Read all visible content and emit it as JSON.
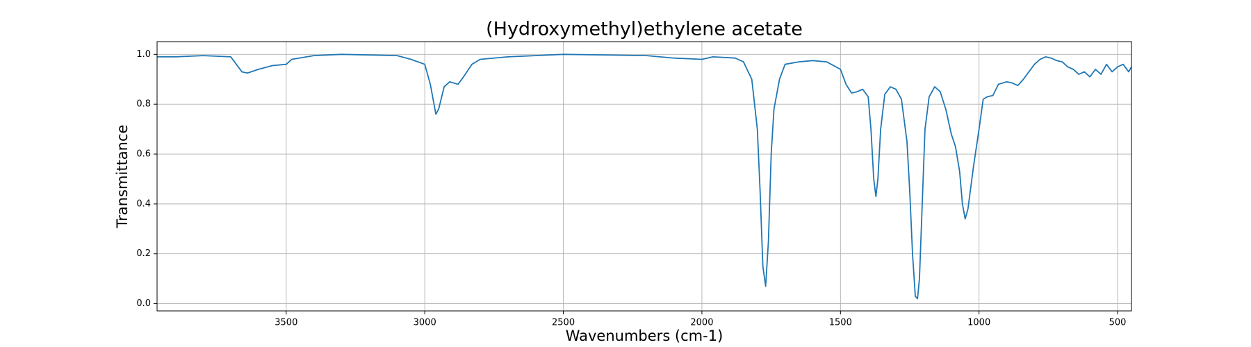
{
  "chart_data": {
    "type": "line",
    "title": "(Hydroxymethyl)ethylene acetate",
    "xlabel": "Wavenumbers (cm-1)",
    "ylabel": "Transmittance",
    "color": "#1f77b4",
    "grid": true,
    "xlim": [
      3966,
      450
    ],
    "ylim": [
      -0.029,
      1.051
    ],
    "xticks": [
      3500,
      3000,
      2500,
      2000,
      1500,
      1000,
      500
    ],
    "yticks": [
      {
        "value": 0,
        "label": "0.0"
      },
      0.2,
      0.4,
      0.6,
      0.8,
      {
        "value": 1,
        "label": "1.0"
      }
    ],
    "x": [
      3966,
      3900,
      3800,
      3700,
      3660,
      3640,
      3600,
      3550,
      3500,
      3480,
      3400,
      3300,
      3100,
      3050,
      3000,
      2980,
      2960,
      2950,
      2930,
      2910,
      2880,
      2860,
      2830,
      2800,
      2700,
      2500,
      2200,
      2100,
      2000,
      1960,
      1880,
      1850,
      1820,
      1800,
      1790,
      1780,
      1770,
      1760,
      1750,
      1740,
      1720,
      1700,
      1650,
      1600,
      1550,
      1500,
      1480,
      1460,
      1440,
      1420,
      1400,
      1390,
      1380,
      1372,
      1365,
      1355,
      1340,
      1320,
      1300,
      1280,
      1260,
      1250,
      1240,
      1230,
      1222,
      1215,
      1205,
      1195,
      1180,
      1160,
      1140,
      1120,
      1100,
      1085,
      1070,
      1060,
      1050,
      1040,
      1020,
      1000,
      985,
      970,
      950,
      930,
      900,
      880,
      860,
      840,
      820,
      800,
      780,
      760,
      740,
      720,
      700,
      680,
      660,
      640,
      620,
      600,
      580,
      560,
      540,
      520,
      500,
      480,
      460,
      450
    ],
    "values": [
      0.99,
      0.99,
      0.995,
      0.99,
      0.93,
      0.925,
      0.94,
      0.955,
      0.96,
      0.98,
      0.995,
      1.0,
      0.995,
      0.98,
      0.96,
      0.88,
      0.76,
      0.78,
      0.87,
      0.89,
      0.88,
      0.91,
      0.96,
      0.98,
      0.99,
      1.0,
      0.995,
      0.985,
      0.98,
      0.99,
      0.985,
      0.97,
      0.9,
      0.7,
      0.45,
      0.15,
      0.07,
      0.25,
      0.6,
      0.78,
      0.9,
      0.96,
      0.97,
      0.975,
      0.97,
      0.94,
      0.88,
      0.845,
      0.85,
      0.86,
      0.83,
      0.7,
      0.5,
      0.43,
      0.5,
      0.7,
      0.84,
      0.87,
      0.86,
      0.82,
      0.65,
      0.45,
      0.2,
      0.03,
      0.02,
      0.1,
      0.4,
      0.7,
      0.83,
      0.87,
      0.85,
      0.78,
      0.68,
      0.63,
      0.53,
      0.4,
      0.34,
      0.38,
      0.55,
      0.7,
      0.82,
      0.83,
      0.835,
      0.88,
      0.89,
      0.885,
      0.875,
      0.9,
      0.93,
      0.96,
      0.98,
      0.99,
      0.985,
      0.975,
      0.97,
      0.95,
      0.94,
      0.92,
      0.93,
      0.91,
      0.94,
      0.92,
      0.96,
      0.93,
      0.95,
      0.96,
      0.93,
      0.95
    ]
  }
}
